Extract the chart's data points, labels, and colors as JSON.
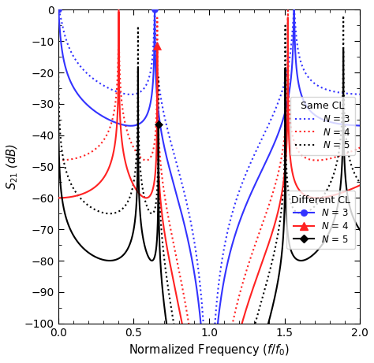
{
  "xlabel": "Normalized Frequency ($f$/$f_0$)",
  "ylabel": "$S_{21}$ (dB)",
  "xlim": [
    0,
    2
  ],
  "ylim": [
    -100,
    0
  ],
  "yticks": [
    0,
    -10,
    -20,
    -30,
    -40,
    -50,
    -60,
    -70,
    -80,
    -90,
    -100
  ],
  "xticks": [
    0,
    0.5,
    1.0,
    1.5,
    2.0
  ],
  "f0": 1.0,
  "bw": 0.8,
  "same_cl_atts": [
    27,
    48,
    65
  ],
  "diff_cl_atts": [
    37,
    60,
    80
  ],
  "colors_blue": "#3333ff",
  "colors_red": "#ff2222",
  "colors_black": "#000000",
  "background_color": "#ffffff"
}
